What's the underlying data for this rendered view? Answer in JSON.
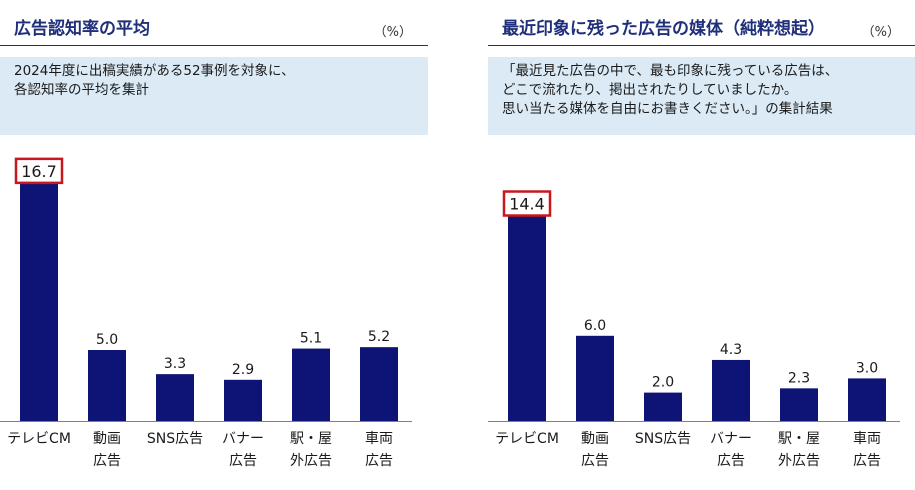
{
  "chart_data": [
    {
      "type": "bar",
      "title": "広告認知率の平均",
      "unit": "（%）",
      "note_lines": [
        "2024年度に出稿実績がある52事例を対象に、",
        "各認知率の平均を集計"
      ],
      "categories": [
        [
          "テレビCM"
        ],
        [
          "動画",
          "広告"
        ],
        [
          "SNS広告"
        ],
        [
          "バナー",
          "広告"
        ],
        [
          "駅・屋",
          "外広告"
        ],
        [
          "車両",
          "広告"
        ]
      ],
      "values": [
        16.7,
        5.0,
        3.3,
        2.9,
        5.1,
        5.2
      ],
      "value_labels": [
        "16.7",
        "5.0",
        "3.3",
        "2.9",
        "5.1",
        "5.2"
      ],
      "highlight_index": 0,
      "highlight_color": "#c8171d",
      "bar_color": "#0d1475",
      "ylim": [
        0,
        18
      ]
    },
    {
      "type": "bar",
      "title": "最近印象に残った広告の媒体（純粋想起）",
      "unit": "（%）",
      "note_lines": [
        "「最近見た広告の中で、最も印象に残っている広告は、",
        "どこで流れたり、掲出されたりしていましたか。",
        "思い当たる媒体を自由にお書きください。」の集計結果"
      ],
      "categories": [
        [
          "テレビCM"
        ],
        [
          "動画",
          "広告"
        ],
        [
          "SNS広告"
        ],
        [
          "バナー",
          "広告"
        ],
        [
          "駅・屋",
          "外広告"
        ],
        [
          "車両",
          "広告"
        ]
      ],
      "values": [
        14.4,
        6.0,
        2.0,
        4.3,
        2.3,
        3.0
      ],
      "value_labels": [
        "14.4",
        "6.0",
        "2.0",
        "4.3",
        "2.3",
        "3.0"
      ],
      "highlight_index": 0,
      "highlight_color": "#c8171d",
      "bar_color": "#0d1475",
      "ylim": [
        0,
        18
      ]
    }
  ]
}
